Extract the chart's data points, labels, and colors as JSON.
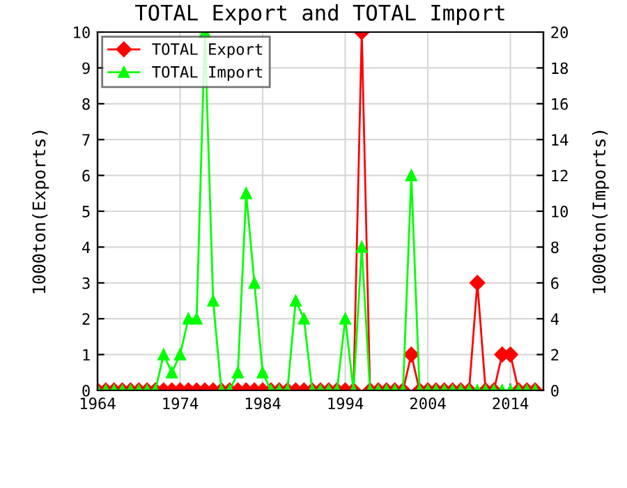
{
  "chart_data": {
    "type": "line",
    "title": "TOTAL Export and TOTAL Import",
    "ylabel": "1000ton(Exports)",
    "y2label": "1000ton(Imports)",
    "x": [
      1964,
      1965,
      1966,
      1967,
      1968,
      1969,
      1970,
      1971,
      1972,
      1973,
      1974,
      1975,
      1976,
      1977,
      1978,
      1979,
      1980,
      1981,
      1982,
      1983,
      1984,
      1985,
      1986,
      1987,
      1988,
      1989,
      1990,
      1991,
      1992,
      1993,
      1994,
      1995,
      1996,
      1997,
      1998,
      1999,
      2000,
      2001,
      2002,
      2003,
      2004,
      2005,
      2006,
      2007,
      2008,
      2009,
      2010,
      2011,
      2012,
      2013,
      2014,
      2015,
      2016,
      2017
    ],
    "series": [
      {
        "name": "TOTAL Export",
        "color": "#ff0000",
        "marker": "diamond",
        "values": [
          0,
          0,
          0,
          0,
          0,
          0,
          0,
          0,
          0,
          0,
          0,
          0,
          0,
          0,
          0,
          0,
          0,
          0,
          0,
          0,
          0,
          0,
          0,
          0,
          0,
          0,
          0,
          0,
          0,
          0,
          0,
          0,
          10,
          0,
          0,
          0,
          0,
          0,
          1,
          0,
          0,
          0,
          0,
          0,
          0,
          0,
          3,
          0,
          0,
          1,
          1,
          0,
          0,
          0
        ]
      },
      {
        "name": "TOTAL Import",
        "color": "#00ff00",
        "marker": "triangle",
        "axis": "y2",
        "values": [
          0,
          0,
          0,
          0,
          0,
          0,
          0,
          0,
          2,
          1,
          2,
          4,
          4,
          20,
          5,
          0,
          0,
          1,
          11,
          6,
          1,
          0,
          0,
          0,
          5,
          4,
          0,
          0,
          0,
          0,
          4,
          0,
          8,
          0,
          0,
          0,
          0,
          0,
          12,
          0,
          0,
          0,
          0,
          0,
          0,
          0,
          0,
          0,
          0,
          0,
          0,
          0,
          0,
          0
        ]
      }
    ],
    "xlim": [
      1964,
      2018
    ],
    "xticks": [
      1964,
      1974,
      1984,
      1994,
      2004,
      2014
    ],
    "ylim": [
      0,
      10
    ],
    "yticks": [
      0,
      1,
      2,
      3,
      4,
      5,
      6,
      7,
      8,
      9,
      10
    ],
    "y2lim": [
      0,
      20
    ],
    "y2ticks": [
      0,
      2,
      4,
      6,
      8,
      10,
      12,
      14,
      16,
      18,
      20
    ],
    "grid": true,
    "legend": "top left"
  }
}
